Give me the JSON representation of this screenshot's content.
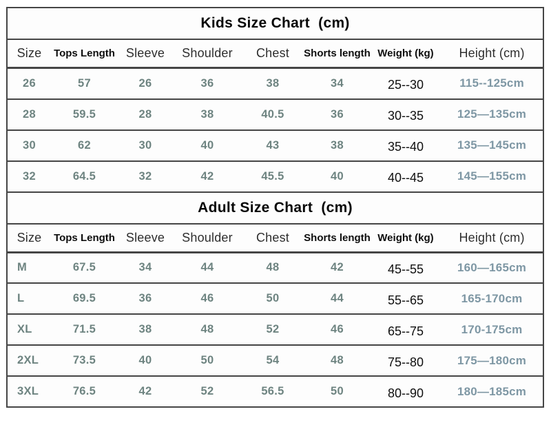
{
  "colors": {
    "border": "#454545",
    "measurement_text": "#6e8481",
    "height_text": "#7e97a4",
    "weight_text": "#101010"
  },
  "chart_data": [
    {
      "type": "table",
      "key": "kids",
      "title": "Kids Size Chart  (cm)",
      "columns": [
        "Size",
        "Tops Length",
        "Sleeve",
        "Shoulder",
        "Chest",
        "Shorts length",
        "Weight (kg)",
        "Height (cm)"
      ],
      "size_align": "center",
      "rows": [
        [
          "26",
          "57",
          "26",
          "36",
          "38",
          "34",
          "25--30",
          "115--125cm"
        ],
        [
          "28",
          "59.5",
          "28",
          "38",
          "40.5",
          "36",
          "30--35",
          "125—135cm"
        ],
        [
          "30",
          "62",
          "30",
          "40",
          "43",
          "38",
          "35--40",
          "135—145cm"
        ],
        [
          "32",
          "64.5",
          "32",
          "42",
          "45.5",
          "40",
          "40--45",
          "145—155cm"
        ]
      ]
    },
    {
      "type": "table",
      "key": "adult",
      "title": "Adult Size Chart  (cm)",
      "columns": [
        "Size",
        "Tops Length",
        "Sleeve",
        "Shoulder",
        "Chest",
        "Shorts length",
        "Weight (kg)",
        "Height (cm)"
      ],
      "size_align": "left",
      "rows": [
        [
          "M",
          "67.5",
          "34",
          "44",
          "48",
          "42",
          "45--55",
          "160—165cm"
        ],
        [
          "L",
          "69.5",
          "36",
          "46",
          "50",
          "44",
          "55--65",
          "165-170cm"
        ],
        [
          "XL",
          "71.5",
          "38",
          "48",
          "52",
          "46",
          "65--75",
          "170-175cm"
        ],
        [
          "2XL",
          "73.5",
          "40",
          "50",
          "54",
          "48",
          "75--80",
          "175—180cm"
        ],
        [
          "3XL",
          "76.5",
          "42",
          "52",
          "56.5",
          "50",
          "80--90",
          "180—185cm"
        ]
      ]
    }
  ]
}
